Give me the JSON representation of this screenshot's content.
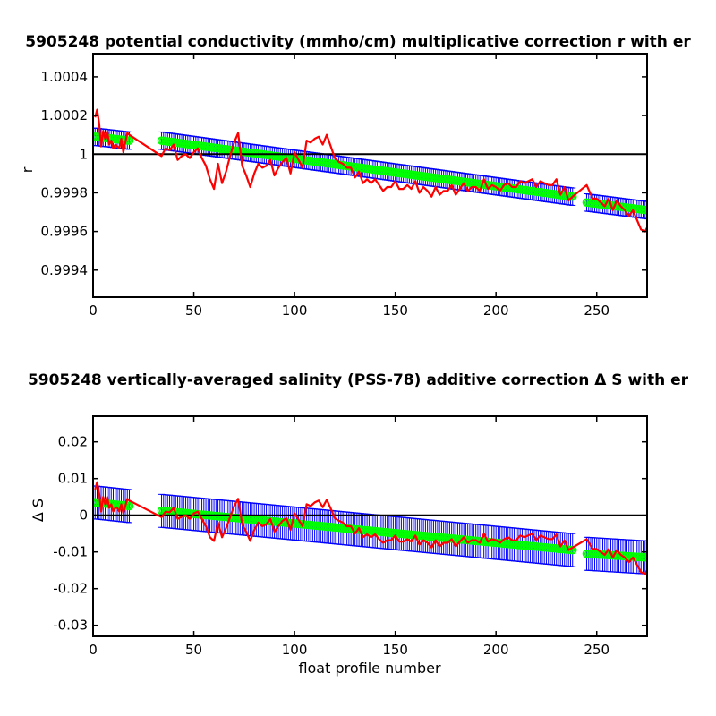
{
  "chart_data": [
    {
      "type": "line",
      "title": "5905248 potential conductivity (mmho/cm) multiplicative correction r with er",
      "xlabel": "",
      "ylabel": "r",
      "xlim": [
        0,
        275
      ],
      "ylim": [
        0.99926,
        1.00052
      ],
      "xticks": [
        0,
        50,
        100,
        150,
        200,
        250
      ],
      "xtick_labels": [
        "0",
        "50",
        "100",
        "150",
        "200",
        "250"
      ],
      "yticks": [
        0.9994,
        0.9996,
        0.9998,
        1,
        1.0002,
        1.0004
      ],
      "ytick_labels": [
        "0.9994",
        "0.9996",
        "0.9998",
        "1",
        "1.0002",
        "1.0004"
      ],
      "reference_line": 1,
      "grid": false,
      "colors": {
        "fit": "#00ff00",
        "errorbar": "#0000ff",
        "correction": "#ff0000",
        "reference": "#000000"
      },
      "fit_segments": [
        {
          "x": [
            1,
            18
          ],
          "y": [
            1.00009,
            1.00007
          ]
        },
        {
          "x": [
            34,
            238
          ],
          "y": [
            1.00007,
            0.99978
          ]
        },
        {
          "x": [
            245,
            275
          ],
          "y": [
            0.99975,
            0.99971
          ]
        }
      ],
      "error_halfwidth": 4.5e-05,
      "series": [
        {
          "x": [
            1,
            2,
            3,
            4,
            5,
            6,
            7,
            8,
            9,
            10,
            11,
            12,
            13,
            14,
            15,
            16,
            17,
            18,
            34,
            36,
            38,
            40,
            42,
            44,
            46,
            48,
            50,
            52,
            54,
            56,
            58,
            60,
            62,
            64,
            66,
            68,
            70,
            72,
            74,
            76,
            78,
            80,
            82,
            84,
            86,
            88,
            90,
            92,
            94,
            96,
            98,
            100,
            102,
            104,
            106,
            108,
            110,
            112,
            114,
            116,
            118,
            120,
            122,
            124,
            126,
            128,
            130,
            132,
            134,
            136,
            138,
            140,
            142,
            144,
            146,
            148,
            150,
            152,
            154,
            156,
            158,
            160,
            162,
            164,
            166,
            168,
            170,
            172,
            174,
            176,
            178,
            180,
            182,
            184,
            186,
            188,
            190,
            192,
            194,
            196,
            198,
            200,
            202,
            204,
            206,
            208,
            210,
            212,
            214,
            216,
            218,
            220,
            222,
            224,
            226,
            228,
            230,
            232,
            234,
            236,
            238,
            245,
            248,
            250,
            252,
            254,
            256,
            258,
            260,
            262,
            264,
            266,
            268,
            270,
            272,
            274,
            275
          ],
          "y": [
            1.00019,
            1.00023,
            1.00016,
            1.00004,
            1.00012,
            1.00008,
            1.00012,
            1.00005,
            1.00007,
            1.00003,
            1.00005,
            1.00004,
            1.00003,
            1.00008,
            1.00001,
            1.00006,
            1.00011,
            1.0001,
            0.99999,
            1.00003,
            1.00002,
            1.00005,
            0.99997,
            0.99999,
            1,
            0.99998,
            1.00001,
            1.00003,
            0.99998,
            0.99994,
            0.99987,
            0.99982,
            0.99995,
            0.99985,
            0.99991,
            0.99999,
            1.00006,
            1.00011,
            0.99994,
            0.99989,
            0.99983,
            0.9999,
            0.99995,
            0.99993,
            0.99994,
            0.99997,
            0.99989,
            0.99993,
            0.99996,
            0.99998,
            0.9999,
            1.00001,
            0.99997,
            0.99993,
            1.00007,
            1.00006,
            1.00008,
            1.00009,
            1.00005,
            1.0001,
            1.00004,
            0.99998,
            0.99996,
            0.99995,
            0.99993,
            0.99993,
            0.99988,
            0.99991,
            0.99985,
            0.99987,
            0.99985,
            0.99987,
            0.99984,
            0.99981,
            0.99983,
            0.99983,
            0.99986,
            0.99982,
            0.99982,
            0.99984,
            0.99982,
            0.99986,
            0.9998,
            0.99983,
            0.99981,
            0.99978,
            0.99983,
            0.99979,
            0.99981,
            0.99981,
            0.99984,
            0.99979,
            0.99982,
            0.99985,
            0.99981,
            0.99983,
            0.99983,
            0.99981,
            0.99987,
            0.99982,
            0.99984,
            0.99983,
            0.99981,
            0.99984,
            0.99985,
            0.99983,
            0.99983,
            0.99986,
            0.99985,
            0.99986,
            0.99987,
            0.99983,
            0.99986,
            0.99985,
            0.99984,
            0.99984,
            0.99987,
            0.99979,
            0.99983,
            0.99976,
            0.99978,
            0.99984,
            0.99977,
            0.99977,
            0.99975,
            0.99973,
            0.99977,
            0.99971,
            0.99976,
            0.99973,
            0.99971,
            0.99968,
            0.99971,
            0.99966,
            0.99961,
            0.9996,
            0.99962
          ]
        }
      ]
    },
    {
      "type": "line",
      "title": "5905248 vertically-averaged salinity (PSS-78) additive correction Δ S with er",
      "xlabel": "float profile number",
      "ylabel": "Δ S",
      "xlim": [
        0,
        275
      ],
      "ylim": [
        -0.033,
        0.027
      ],
      "xticks": [
        0,
        50,
        100,
        150,
        200,
        250
      ],
      "xtick_labels": [
        "0",
        "50",
        "100",
        "150",
        "200",
        "250"
      ],
      "yticks": [
        -0.03,
        -0.02,
        -0.01,
        0,
        0.01,
        0.02
      ],
      "ytick_labels": [
        "-0.03",
        "-0.02",
        "-0.01",
        "0",
        "0.01",
        "0.02"
      ],
      "reference_line": 0,
      "grid": false,
      "colors": {
        "fit": "#00ff00",
        "errorbar": "#0000ff",
        "correction": "#ff0000",
        "reference": "#000000"
      },
      "fit_segments": [
        {
          "x": [
            1,
            18
          ],
          "y": [
            0.0035,
            0.0025
          ]
        },
        {
          "x": [
            34,
            238
          ],
          "y": [
            0.0012,
            -0.0095
          ]
        },
        {
          "x": [
            245,
            275
          ],
          "y": [
            -0.0105,
            -0.0115
          ]
        }
      ],
      "error_halfwidth": 0.0045,
      "series": [
        {
          "x": [
            1,
            2,
            3,
            4,
            5,
            6,
            7,
            8,
            9,
            10,
            11,
            12,
            13,
            14,
            15,
            16,
            17,
            18,
            34,
            36,
            38,
            40,
            42,
            44,
            46,
            48,
            50,
            52,
            54,
            56,
            58,
            60,
            62,
            64,
            66,
            68,
            70,
            72,
            74,
            76,
            78,
            80,
            82,
            84,
            86,
            88,
            90,
            92,
            94,
            96,
            98,
            100,
            102,
            104,
            106,
            108,
            110,
            112,
            114,
            116,
            118,
            120,
            122,
            124,
            126,
            128,
            130,
            132,
            134,
            136,
            138,
            140,
            142,
            144,
            146,
            148,
            150,
            152,
            154,
            156,
            158,
            160,
            162,
            164,
            166,
            168,
            170,
            172,
            174,
            176,
            178,
            180,
            182,
            184,
            186,
            188,
            190,
            192,
            194,
            196,
            198,
            200,
            202,
            204,
            206,
            208,
            210,
            212,
            214,
            216,
            218,
            220,
            222,
            224,
            226,
            228,
            230,
            232,
            234,
            236,
            238,
            245,
            248,
            250,
            252,
            254,
            256,
            258,
            260,
            262,
            264,
            266,
            268,
            270,
            272,
            274,
            275
          ],
          "y": [
            0.007,
            0.009,
            0.006,
            0.001,
            0.005,
            0.003,
            0.005,
            0.002,
            0.003,
            0.001,
            0.002,
            0.002,
            0.001,
            0.003,
            0.0005,
            0.0025,
            0.0045,
            0.004,
            -0.0005,
            0.001,
            0.0008,
            0.002,
            -0.001,
            -0.0004,
            0,
            -0.001,
            0.0005,
            0.001,
            -0.001,
            -0.003,
            -0.006,
            -0.007,
            -0.002,
            -0.006,
            -0.0035,
            -0.0005,
            0.0025,
            0.0045,
            -0.0025,
            -0.0045,
            -0.007,
            -0.004,
            -0.002,
            -0.003,
            -0.0025,
            -0.001,
            -0.0045,
            -0.003,
            -0.0015,
            -0.0008,
            -0.004,
            0.0005,
            -0.0012,
            -0.003,
            0.003,
            0.0025,
            0.0035,
            0.004,
            0.0022,
            0.0042,
            0.0018,
            -0.0008,
            -0.0015,
            -0.002,
            -0.003,
            -0.003,
            -0.005,
            -0.0035,
            -0.006,
            -0.0052,
            -0.006,
            -0.0052,
            -0.0065,
            -0.0075,
            -0.0068,
            -0.0068,
            -0.0055,
            -0.0072,
            -0.0072,
            -0.0065,
            -0.0072,
            -0.0055,
            -0.008,
            -0.0068,
            -0.0075,
            -0.0088,
            -0.0068,
            -0.0085,
            -0.0075,
            -0.0075,
            -0.0065,
            -0.0085,
            -0.0072,
            -0.006,
            -0.0075,
            -0.0068,
            -0.0068,
            -0.0075,
            -0.005,
            -0.0072,
            -0.0065,
            -0.0068,
            -0.0075,
            -0.0065,
            -0.006,
            -0.0068,
            -0.0068,
            -0.0055,
            -0.006,
            -0.0055,
            -0.005,
            -0.0068,
            -0.0055,
            -0.006,
            -0.0065,
            -0.0065,
            -0.0052,
            -0.0085,
            -0.0068,
            -0.0095,
            -0.0088,
            -0.0065,
            -0.0092,
            -0.0092,
            -0.01,
            -0.0108,
            -0.0092,
            -0.0115,
            -0.0095,
            -0.0108,
            -0.0115,
            -0.0128,
            -0.0115,
            -0.0135,
            -0.0155,
            -0.016,
            -0.015
          ]
        }
      ]
    }
  ]
}
